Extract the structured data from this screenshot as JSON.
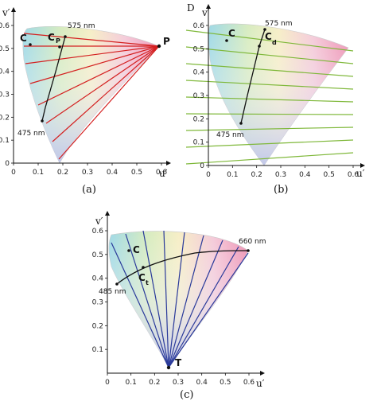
{
  "axis_x_label": "u′",
  "axis_y_label": "v′",
  "ticks_x_panels_ab": [
    "0",
    "0.1",
    "0.2",
    "0.3",
    "0.4",
    "0.5",
    "0.6"
  ],
  "ticks_y_panels_ab": [
    "0",
    "0.1",
    "0.2",
    "0.3",
    "0.4",
    "0.5",
    "0.6"
  ],
  "ticks_x_panel_c": [
    "0",
    "0.1",
    "0.2",
    "0.3",
    "0.4",
    "0.5",
    "0.6"
  ],
  "ticks_y_panel_c": [
    "0.1",
    "0.2",
    "0.3",
    "0.4",
    "0.5",
    "0.6"
  ],
  "panel_a": {
    "caption": "(a)",
    "label_c": "C",
    "label_cp": "C",
    "label_cp_sub": "P",
    "label_p": "P",
    "label_575": "575 nm",
    "label_475": "475 nm",
    "line_color": "#d42020"
  },
  "panel_b": {
    "caption": "(b)",
    "label_d": "D",
    "label_c": "C",
    "label_cd": "C",
    "label_cd_sub": "d",
    "label_575": "575 nm",
    "label_475": "475 nm",
    "line_color": "#7fb83a"
  },
  "panel_c": {
    "caption": "(c)",
    "label_c": "C",
    "label_ct": "C",
    "label_ct_sub": "t",
    "label_t": "T",
    "label_660": "660 nm",
    "label_485": "485 nm",
    "line_color": "#2a3a9a"
  }
}
